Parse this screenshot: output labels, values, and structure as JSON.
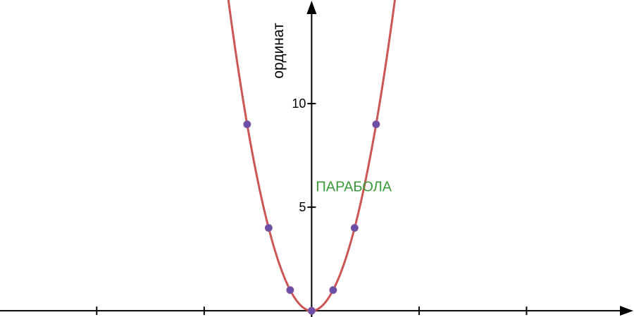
{
  "chart_data": {
    "type": "line",
    "title": "",
    "xlabel": "",
    "ylabel": "ординат",
    "xlim": [
      -14.5,
      15
    ],
    "ylim": [
      -0.3,
      15
    ],
    "x_ticks": [
      -10,
      -5,
      5,
      10
    ],
    "y_ticks": [
      5,
      10
    ],
    "y_tick_labels": [
      "5",
      "10"
    ],
    "grid": false,
    "curve_label": "ПАРАБОЛА",
    "colors": {
      "curve": "#cc5555",
      "points": "#6a4fa8",
      "label": "#3a9a3a",
      "axes": "#000000"
    },
    "series": [
      {
        "name": "ПАРАБОЛА",
        "function": "y = x^2",
        "points": [
          {
            "x": -3,
            "y": 9
          },
          {
            "x": -2,
            "y": 4
          },
          {
            "x": -1,
            "y": 1
          },
          {
            "x": 0,
            "y": 0
          },
          {
            "x": 1,
            "y": 1
          },
          {
            "x": 2,
            "y": 4
          },
          {
            "x": 3,
            "y": 9
          }
        ]
      }
    ]
  }
}
